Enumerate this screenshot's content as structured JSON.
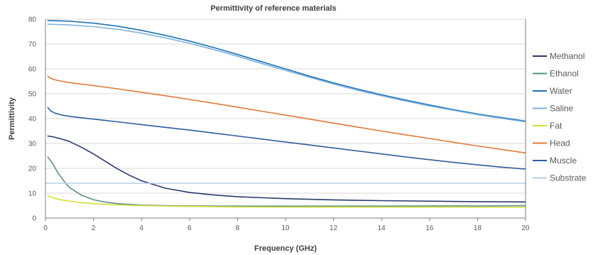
{
  "chart_data": {
    "type": "line",
    "title": "Permittivity of reference materials",
    "xlabel": "Frequency (GHz)",
    "ylabel": "Permittivity",
    "xlim": [
      0,
      20
    ],
    "ylim": [
      0,
      80
    ],
    "x_ticks": [
      0,
      2,
      4,
      6,
      8,
      10,
      12,
      14,
      16,
      18,
      20
    ],
    "y_ticks": [
      0,
      10,
      20,
      30,
      40,
      50,
      60,
      70,
      80
    ],
    "grid": true,
    "legend_position": "right",
    "series": [
      {
        "name": "Methanol",
        "color": "#2c3a6e",
        "x": [
          0.1,
          0.3,
          0.6,
          1,
          1.5,
          2,
          2.5,
          3,
          3.5,
          4,
          5,
          6,
          7,
          8,
          10,
          12,
          14,
          16,
          18,
          20
        ],
        "y": [
          33.0,
          32.7,
          32.0,
          30.8,
          28.5,
          25.8,
          22.8,
          19.8,
          17.2,
          15.0,
          12.0,
          10.3,
          9.3,
          8.6,
          7.8,
          7.3,
          7.0,
          6.8,
          6.6,
          6.5
        ]
      },
      {
        "name": "Ethanol",
        "color": "#5b8f86",
        "x": [
          0.1,
          0.3,
          0.5,
          0.8,
          1,
          1.5,
          2,
          2.5,
          3,
          4,
          5,
          6,
          8,
          10,
          12,
          14,
          16,
          18,
          20
        ],
        "y": [
          24.5,
          22.0,
          18.5,
          14.5,
          12.3,
          9.2,
          7.4,
          6.4,
          5.8,
          5.2,
          5.0,
          4.9,
          4.8,
          4.8,
          4.8,
          4.8,
          4.9,
          4.9,
          5.0
        ]
      },
      {
        "name": "Water",
        "color": "#1f73b7",
        "x": [
          0.1,
          1,
          2,
          3,
          4,
          5,
          6,
          7,
          8,
          9,
          10,
          11,
          12,
          13,
          14,
          15,
          16,
          17,
          18,
          19,
          20
        ],
        "y": [
          79.5,
          79.2,
          78.4,
          77.2,
          75.5,
          73.5,
          71.2,
          68.6,
          65.8,
          62.9,
          60.0,
          57.1,
          54.4,
          51.9,
          49.6,
          47.5,
          45.5,
          43.6,
          41.9,
          40.4,
          39.0
        ]
      },
      {
        "name": "Saline",
        "color": "#7fb2de",
        "x": [
          0.1,
          1,
          2,
          3,
          4,
          5,
          6,
          7,
          8,
          9,
          10,
          11,
          12,
          13,
          14,
          15,
          16,
          17,
          18,
          19,
          20
        ],
        "y": [
          78.0,
          77.7,
          77.0,
          75.9,
          74.4,
          72.5,
          70.3,
          67.8,
          65.1,
          62.2,
          59.4,
          56.6,
          53.9,
          51.4,
          49.2,
          47.1,
          45.1,
          43.3,
          41.6,
          40.1,
          38.7
        ]
      },
      {
        "name": "Fat",
        "color": "#d4df3b",
        "x": [
          0.1,
          0.3,
          0.6,
          1,
          1.5,
          2,
          3,
          4,
          6,
          8,
          10,
          12,
          14,
          16,
          18,
          20
        ],
        "y": [
          9.0,
          8.2,
          7.4,
          6.8,
          6.2,
          5.8,
          5.3,
          5.0,
          4.7,
          4.5,
          4.4,
          4.4,
          4.4,
          4.4,
          4.4,
          4.4
        ]
      },
      {
        "name": "Head",
        "color": "#e07b39",
        "x": [
          0.1,
          0.2,
          0.4,
          0.7,
          1,
          2,
          3,
          4,
          5,
          6,
          7,
          8,
          9,
          10,
          11,
          12,
          13,
          14,
          15,
          16,
          17,
          18,
          19,
          20
        ],
        "y": [
          57.0,
          56.3,
          55.6,
          55.0,
          54.5,
          53.3,
          52.0,
          50.6,
          49.2,
          47.7,
          46.2,
          44.6,
          43.0,
          41.4,
          39.8,
          38.2,
          36.6,
          35.0,
          33.5,
          32.0,
          30.5,
          29.0,
          27.6,
          26.2
        ]
      },
      {
        "name": "Muscle",
        "color": "#2e5d9f",
        "x": [
          0.1,
          0.2,
          0.4,
          0.7,
          1,
          2,
          3,
          4,
          5,
          6,
          7,
          8,
          9,
          10,
          11,
          12,
          13,
          14,
          15,
          16,
          17,
          18,
          19,
          20
        ],
        "y": [
          44.5,
          43.2,
          42.2,
          41.4,
          40.9,
          39.8,
          38.7,
          37.6,
          36.5,
          35.4,
          34.2,
          33.0,
          31.8,
          30.6,
          29.4,
          28.2,
          27.0,
          25.8,
          24.6,
          23.5,
          22.4,
          21.4,
          20.5,
          19.7
        ]
      },
      {
        "name": "Substrate",
        "color": "#b8cde8",
        "x": [
          0,
          20
        ],
        "y": [
          14.0,
          14.0
        ]
      }
    ]
  }
}
